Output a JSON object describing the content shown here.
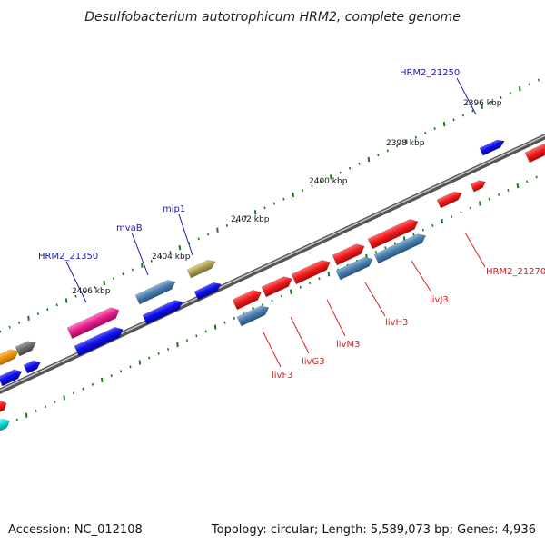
{
  "title": "Desulfobacterium autotrophicum HRM2, complete genome",
  "footer": {
    "accession": "Accession: NC_012108",
    "summary": "Topology: circular; Length: 5,589,073 bp; Genes: 4,936"
  },
  "ticks": [
    {
      "label": "2396 kbp"
    },
    {
      "label": "2398 kbp"
    },
    {
      "label": "2400 kbp"
    },
    {
      "label": "2402 kbp"
    },
    {
      "label": "2404 kbp"
    },
    {
      "label": "2406 kbp"
    }
  ],
  "gene_labels": [
    {
      "text": "HRM2_21250",
      "color": "#1a1aa6"
    },
    {
      "text": "mip1",
      "color": "#1a1aa6"
    },
    {
      "text": "mvaB",
      "color": "#1a1aa6"
    },
    {
      "text": "HRM2_21350",
      "color": "#1a1aa6"
    },
    {
      "text": "HRM2_21270",
      "color": "#d42020"
    },
    {
      "text": "livJ3",
      "color": "#d42020"
    },
    {
      "text": "livH3",
      "color": "#d42020"
    },
    {
      "text": "livM3",
      "color": "#d42020"
    },
    {
      "text": "livG3",
      "color": "#d42020"
    },
    {
      "text": "livF3",
      "color": "#d42020"
    }
  ],
  "colors": {
    "red_gene": "#e61c1c",
    "blue_gene": "#1010e0",
    "steel_gene": "#4a7fb0",
    "pink_gene": "#e0208a",
    "olive_gene": "#b0a050",
    "orange_gene": "#f0940a",
    "gray_gene": "#6e6e6e",
    "cyan_gene": "#10d8d8",
    "backbone": "#7a7a7a",
    "tick": "#1a7a1a"
  }
}
